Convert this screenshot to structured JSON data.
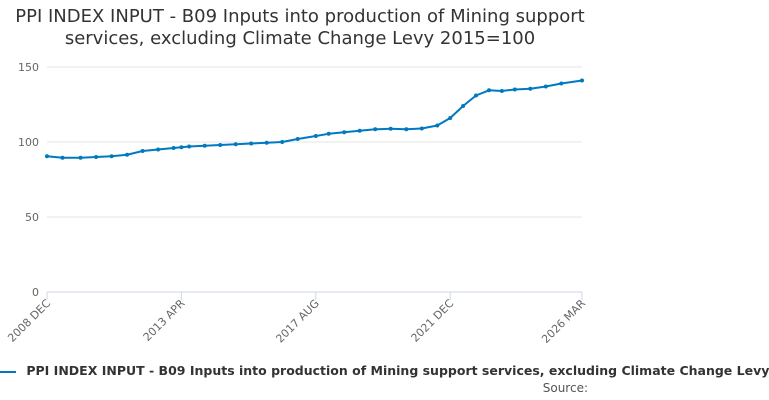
{
  "chart_data": {
    "type": "line",
    "title": "PPI INDEX INPUT - B09 Inputs into production of Mining support services, excluding Climate Change Levy 2015=100",
    "xlabel": "",
    "ylabel": "",
    "ylim": [
      0,
      150
    ],
    "yticks": [
      0,
      50,
      100,
      150
    ],
    "x_ticks": [
      "2008 DEC",
      "2013 APR",
      "2017 AUG",
      "2021 DEC",
      "2026 MAR"
    ],
    "grid": true,
    "legend_position": "bottom",
    "series": [
      {
        "name": "PPI INDEX INPUT - B09 Inputs into production of Mining support services, excluding Climate Change Levy",
        "color": "#0079c1",
        "x": [
          "2008 DEC",
          "2009 JUN",
          "2010 JAN",
          "2010 JUL",
          "2011 JAN",
          "2011 JUL",
          "2012 JAN",
          "2012 JUL",
          "2013 JAN",
          "2013 APR",
          "2013 JUL",
          "2014 JAN",
          "2014 JUL",
          "2015 JAN",
          "2015 JUL",
          "2016 JAN",
          "2016 JUL",
          "2017 JAN",
          "2017 AUG",
          "2018 JAN",
          "2018 JUL",
          "2019 JAN",
          "2019 JUL",
          "2020 JAN",
          "2020 JUL",
          "2021 JAN",
          "2021 JUL",
          "2021 DEC",
          "2022 MAY",
          "2022 OCT",
          "2023 MAR",
          "2023 AUG",
          "2024 JAN",
          "2024 JUL",
          "2025 JAN",
          "2025 JUL",
          "2026 MAR"
        ],
        "values": [
          90.5,
          89.5,
          89.5,
          90.0,
          90.5,
          91.5,
          94.0,
          95.0,
          96.0,
          96.5,
          97.0,
          97.5,
          98.0,
          98.5,
          99.0,
          99.5,
          100.0,
          102.0,
          104.0,
          105.5,
          106.5,
          107.5,
          108.5,
          108.8,
          108.5,
          109.0,
          111.0,
          116.0,
          124.0,
          131.0,
          134.5,
          134.0,
          135.0,
          135.5,
          137.0,
          139.0,
          141.0
        ]
      }
    ]
  },
  "legend": {
    "label": "PPI INDEX INPUT - B09 Inputs into production of Mining support services, excluding Climate Change Levy"
  },
  "source": {
    "label": "Source:"
  }
}
